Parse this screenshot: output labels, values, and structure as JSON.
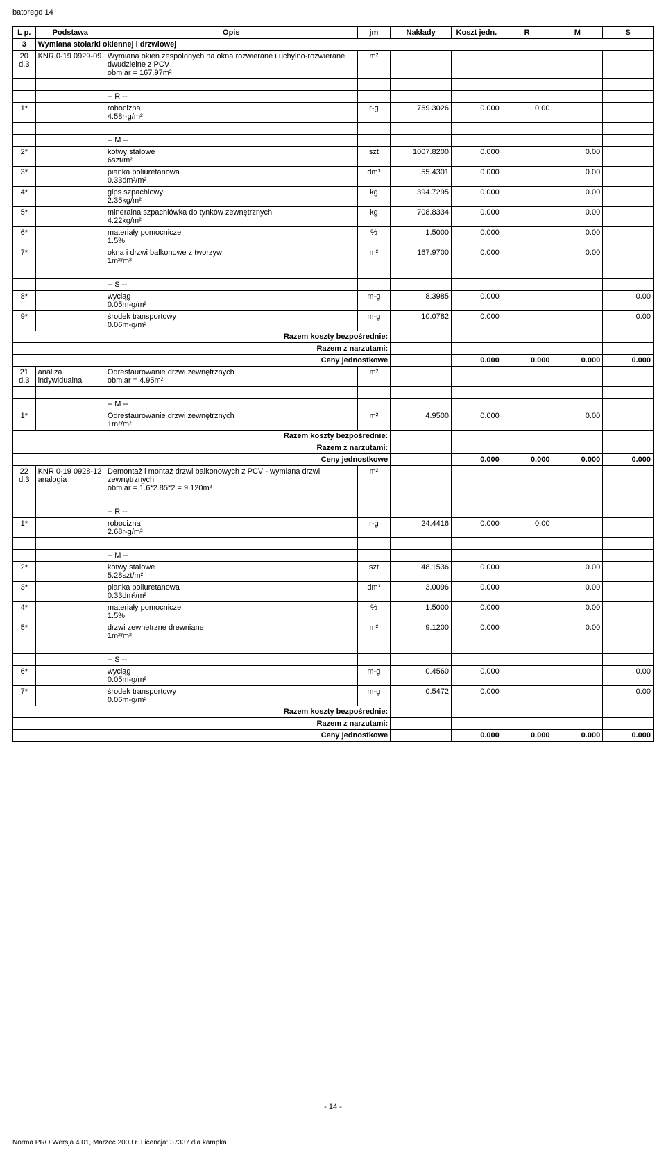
{
  "doc_header": "batorego 14",
  "page_num": "- 14 -",
  "footer_credit": "Norma PRO Wersja 4.01, Marzec 2003 r. Licencja: 37337 dla kampka",
  "columns": {
    "lp": "L p.",
    "podstawa": "Podstawa",
    "opis": "Opis",
    "jm": "jm",
    "naklady": "Nakłady",
    "koszt": "Koszt jedn.",
    "r": "R",
    "m": "M",
    "s": "S"
  },
  "section": {
    "num": "3",
    "title": "Wymiana stolarki okiennej i drzwiowej"
  },
  "summary_labels": {
    "rkb": "Razem koszty bezpośrednie:",
    "rzn": "Razem z narzutami:",
    "cj": "Ceny jednostkowe"
  },
  "group_labels": {
    "r": "-- R --",
    "m": "-- M --",
    "s": "-- S --"
  },
  "items": {
    "i20": {
      "lp": "20 d.3",
      "podstawa": "KNR 0-19 0929-09",
      "opis": "Wymiana okien zespolonych na okna rozwierane i uchylno-rozwierane dwudzielne z PCV",
      "obmiar": "obmiar = 167.97m²",
      "jm": "m²",
      "rows": {
        "r1": {
          "no": "1*",
          "desc": "robocizna",
          "qty": "4.58r-g/m²",
          "jm": "r-g",
          "nakl": "769.3026",
          "koszt": "0.000",
          "r": "0.00"
        },
        "m2": {
          "no": "2*",
          "desc": "kotwy stalowe",
          "qty": "6szt/m²",
          "jm": "szt",
          "nakl": "1007.8200",
          "koszt": "0.000",
          "m": "0.00"
        },
        "m3": {
          "no": "3*",
          "desc": "pianka poliuretanowa",
          "qty": "0.33dm³/m²",
          "jm": "dm³",
          "nakl": "55.4301",
          "koszt": "0.000",
          "m": "0.00"
        },
        "m4": {
          "no": "4*",
          "desc": "gips szpachlowy",
          "qty": "2.35kg/m²",
          "jm": "kg",
          "nakl": "394.7295",
          "koszt": "0.000",
          "m": "0.00"
        },
        "m5": {
          "no": "5*",
          "desc": "mineralna szpachlówka do tynków zewnętrznych",
          "qty": "4.22kg/m²",
          "jm": "kg",
          "nakl": "708.8334",
          "koszt": "0.000",
          "m": "0.00"
        },
        "m6": {
          "no": "6*",
          "desc": "materiały pomocnicze",
          "qty": "1.5%",
          "jm": "%",
          "nakl": "1.5000",
          "koszt": "0.000",
          "m": "0.00"
        },
        "m7": {
          "no": "7*",
          "desc": "okna i drzwi balkonowe z tworzyw",
          "qty": "1m²/m²",
          "jm": "m²",
          "nakl": "167.9700",
          "koszt": "0.000",
          "m": "0.00"
        },
        "s8": {
          "no": "8*",
          "desc": "wyciąg",
          "qty": "0.05m-g/m²",
          "jm": "m-g",
          "nakl": "8.3985",
          "koszt": "0.000",
          "s": "0.00"
        },
        "s9": {
          "no": "9*",
          "desc": "środek transportowy",
          "qty": "0.06m-g/m²",
          "jm": "m-g",
          "nakl": "10.0782",
          "koszt": "0.000",
          "s": "0.00"
        }
      },
      "summary": {
        "koszt": "0.000",
        "r": "0.000",
        "m": "0.000",
        "s": "0.000"
      }
    },
    "i21": {
      "lp": "21 d.3",
      "podstawa": "analiza indywidualna",
      "opis": "Odrestaurowanie drzwi zewnętrznych",
      "obmiar": "obmiar = 4.95m²",
      "jm": "m²",
      "rows": {
        "m1": {
          "no": "1*",
          "desc": "Odrestaurowanie drzwi zewnętrznych",
          "qty": "1m²/m²",
          "jm": "m²",
          "nakl": "4.9500",
          "koszt": "0.000",
          "m": "0.00"
        }
      },
      "summary": {
        "koszt": "0.000",
        "r": "0.000",
        "m": "0.000",
        "s": "0.000"
      }
    },
    "i22": {
      "lp": "22 d.3",
      "podstawa": "KNR 0-19 0928-12 analogia",
      "opis": "Demontaż i montaż drzwi balkonowych z PCV - wymiana drzwi zewnętrznych",
      "obmiar": "obmiar = 1.6*2.85*2 = 9.120m²",
      "jm": "m²",
      "rows": {
        "r1": {
          "no": "1*",
          "desc": "robocizna",
          "qty": "2.68r-g/m²",
          "jm": "r-g",
          "nakl": "24.4416",
          "koszt": "0.000",
          "r": "0.00"
        },
        "m2": {
          "no": "2*",
          "desc": "kotwy stalowe",
          "qty": "5.28szt/m²",
          "jm": "szt",
          "nakl": "48.1536",
          "koszt": "0.000",
          "m": "0.00"
        },
        "m3": {
          "no": "3*",
          "desc": "pianka poliuretanowa",
          "qty": "0.33dm³/m²",
          "jm": "dm³",
          "nakl": "3.0096",
          "koszt": "0.000",
          "m": "0.00"
        },
        "m4": {
          "no": "4*",
          "desc": "materiały pomocnicze",
          "qty": "1.5%",
          "jm": "%",
          "nakl": "1.5000",
          "koszt": "0.000",
          "m": "0.00"
        },
        "m5": {
          "no": "5*",
          "desc": "drzwi zewnetrzne drewniane",
          "qty": "1m²/m²",
          "jm": "m²",
          "nakl": "9.1200",
          "koszt": "0.000",
          "m": "0.00"
        },
        "s6": {
          "no": "6*",
          "desc": "wyciąg",
          "qty": "0.05m-g/m²",
          "jm": "m-g",
          "nakl": "0.4560",
          "koszt": "0.000",
          "s": "0.00"
        },
        "s7": {
          "no": "7*",
          "desc": "środek transportowy",
          "qty": "0.06m-g/m²",
          "jm": "m-g",
          "nakl": "0.5472",
          "koszt": "0.000",
          "s": "0.00"
        }
      },
      "summary": {
        "koszt": "0.000",
        "r": "0.000",
        "m": "0.000",
        "s": "0.000"
      }
    }
  }
}
